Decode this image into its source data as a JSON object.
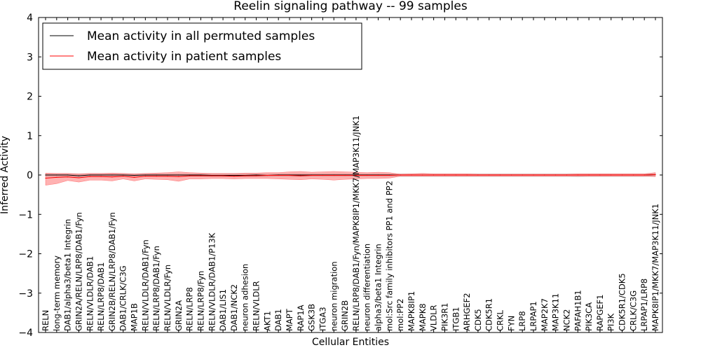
{
  "chart_data": {
    "type": "line",
    "title": "Reelin signaling pathway -- 99 samples",
    "xlabel": "Cellular Entities",
    "ylabel": "Inferred Activity",
    "ylim": [
      -4,
      4
    ],
    "yticks": [
      4,
      3,
      2,
      1,
      0,
      -1,
      -2,
      -3,
      -4
    ],
    "ytick_labels": [
      "4",
      "3",
      "2",
      "1",
      "0",
      "−1",
      "−2",
      "−3",
      "−4"
    ],
    "legend": {
      "position": "top-left",
      "entries": [
        {
          "label": "Mean activity in all permuted samples",
          "color": "#000000"
        },
        {
          "label": "Mean activity in patient samples",
          "color": "#ff0000"
        }
      ]
    },
    "categories": [
      "RELN",
      "long-term memory",
      "DAB1/alpha3/beta1 Integrin",
      "GRIN2A/RELN/LRP8/DAB1/Fyn",
      "RELN/VLDLR/DAB1",
      "RELN/LRP8/DAB1",
      "GRIN2B/RELN/LRP8/DAB1/Fyn",
      "DAB1/CRLK/C3G",
      "MAP1B",
      "RELN/VLDLR/DAB1/Fyn",
      "RELN/LRP8/DAB1/Fyn",
      "RELN/VLDLR/Fyn",
      "GRIN2A",
      "RELN/LRP8",
      "RELN/LRP8/Fyn",
      "RELN/VLDLR/DAB1/P13K",
      "DAB1/LIS1",
      "DAB1/NCK2",
      "neuron adhesion",
      "RELN/VLDLR",
      "AKT1",
      "DAB1",
      "MAPT",
      "RAP1A",
      "GSK3B",
      "ITGA3",
      "neuron migration",
      "GRIN2B",
      "RELN/LRP8/DAB1/Fyn/MAPK8IP1/MKK7/MAP3K11/JNK1",
      "neuron differentiation",
      "alpha3/beta1 Integrin",
      "mol:Src family inhibitors PP1 and PP2",
      "mol:PP2",
      "MAPK8IP1",
      "MAPK8",
      "VLDLR",
      "PIK3R1",
      "ITGB1",
      "ARHGEF2",
      "CDK5",
      "CDK5R1",
      "CRKL",
      "FYN",
      "LRP8",
      "LRPAP1",
      "MAP2K7",
      "MAP3K11",
      "NCK2",
      "PAFAH1B1",
      "PIK3CA",
      "RAPGEF1",
      "PI3K",
      "CDK5R1/CDK5",
      "CRLK/C3G",
      "LRPAP1/LRP8",
      "MAPK8IP1/MKK7/MAP3K11/JNK1"
    ],
    "series": [
      {
        "name": "Mean activity in all permuted samples",
        "color": "#000000",
        "values": [
          0.0,
          0.0,
          0.0,
          -0.02,
          0.0,
          0.0,
          0.0,
          0.0,
          -0.01,
          0.0,
          0.0,
          0.0,
          0.0,
          0.0,
          0.0,
          -0.01,
          -0.01,
          -0.01,
          -0.01,
          0.0,
          -0.01,
          0.0,
          0.0,
          0.0,
          0.0,
          0.0,
          0.0,
          0.0,
          0.0,
          0.0,
          0.0,
          0.0,
          0.0,
          0.0,
          0.0,
          0.0,
          0.0,
          0.0,
          0.0,
          0.0,
          0.0,
          0.0,
          0.0,
          0.0,
          0.0,
          0.0,
          0.0,
          0.0,
          0.0,
          0.0,
          0.0,
          0.0,
          0.0,
          0.0,
          0.0,
          0.01
        ],
        "band_upper": [
          0.03,
          0.03,
          0.03,
          0.02,
          0.03,
          0.03,
          0.03,
          0.03,
          0.03,
          0.03,
          0.03,
          0.03,
          0.03,
          0.03,
          0.03,
          0.03,
          0.03,
          0.03,
          0.03,
          0.03,
          0.03,
          0.03,
          0.03,
          0.03,
          0.03,
          0.03,
          0.03,
          0.03,
          0.03,
          0.03,
          0.03,
          0.03,
          0.03,
          0.03,
          0.03,
          0.03,
          0.03,
          0.03,
          0.03,
          0.03,
          0.03,
          0.03,
          0.03,
          0.03,
          0.03,
          0.03,
          0.03,
          0.03,
          0.03,
          0.03,
          0.03,
          0.03,
          0.03,
          0.03,
          0.03,
          0.04
        ],
        "band_lower": [
          -0.04,
          -0.04,
          -0.04,
          -0.06,
          -0.04,
          -0.04,
          -0.04,
          -0.04,
          -0.05,
          -0.04,
          -0.04,
          -0.04,
          -0.04,
          -0.04,
          -0.04,
          -0.05,
          -0.05,
          -0.05,
          -0.05,
          -0.04,
          -0.05,
          -0.04,
          -0.04,
          -0.04,
          -0.04,
          -0.04,
          -0.04,
          -0.04,
          -0.04,
          -0.04,
          -0.04,
          -0.04,
          -0.04,
          -0.04,
          -0.04,
          -0.04,
          -0.04,
          -0.04,
          -0.04,
          -0.04,
          -0.04,
          -0.04,
          -0.04,
          -0.04,
          -0.04,
          -0.04,
          -0.04,
          -0.04,
          -0.05,
          -0.04,
          -0.04,
          -0.04,
          -0.04,
          -0.04,
          -0.04,
          -0.03
        ]
      },
      {
        "name": "Mean activity in patient samples",
        "color": "#ff0000",
        "values": [
          -0.08,
          -0.06,
          -0.05,
          -0.07,
          -0.04,
          -0.04,
          -0.05,
          -0.03,
          -0.06,
          -0.03,
          -0.03,
          -0.03,
          -0.04,
          -0.02,
          -0.02,
          -0.02,
          -0.02,
          -0.03,
          -0.02,
          -0.02,
          -0.01,
          -0.01,
          -0.01,
          -0.02,
          -0.01,
          -0.01,
          -0.01,
          -0.01,
          -0.01,
          -0.01,
          -0.01,
          -0.01,
          0.0,
          0.0,
          0.0,
          0.0,
          0.0,
          0.0,
          0.0,
          0.0,
          0.0,
          0.0,
          0.0,
          0.0,
          0.0,
          0.0,
          0.0,
          0.0,
          0.0,
          0.0,
          0.0,
          0.0,
          0.0,
          0.0,
          0.0,
          0.01
        ],
        "band_upper": [
          0.05,
          0.04,
          0.04,
          0.03,
          0.04,
          0.04,
          0.05,
          0.04,
          0.03,
          0.04,
          0.05,
          0.06,
          0.08,
          0.06,
          0.05,
          0.04,
          0.04,
          0.04,
          0.05,
          0.05,
          0.06,
          0.06,
          0.08,
          0.09,
          0.07,
          0.08,
          0.09,
          0.08,
          0.07,
          0.06,
          0.07,
          0.06,
          0.02,
          0.03,
          0.04,
          0.03,
          0.03,
          0.03,
          0.03,
          0.02,
          0.02,
          0.02,
          0.02,
          0.02,
          0.02,
          0.02,
          0.02,
          0.02,
          0.03,
          0.03,
          0.03,
          0.03,
          0.03,
          0.03,
          0.03,
          0.06
        ],
        "band_lower": [
          -0.26,
          -0.22,
          -0.14,
          -0.18,
          -0.13,
          -0.13,
          -0.15,
          -0.1,
          -0.15,
          -0.1,
          -0.11,
          -0.12,
          -0.16,
          -0.1,
          -0.1,
          -0.09,
          -0.09,
          -0.1,
          -0.09,
          -0.09,
          -0.09,
          -0.1,
          -0.11,
          -0.12,
          -0.1,
          -0.11,
          -0.13,
          -0.11,
          -0.1,
          -0.09,
          -0.09,
          -0.08,
          -0.03,
          -0.03,
          -0.03,
          -0.03,
          -0.03,
          -0.03,
          -0.03,
          -0.03,
          -0.03,
          -0.03,
          -0.03,
          -0.03,
          -0.03,
          -0.03,
          -0.03,
          -0.03,
          -0.03,
          -0.03,
          -0.03,
          -0.03,
          -0.03,
          -0.03,
          -0.03,
          -0.04
        ]
      }
    ]
  }
}
